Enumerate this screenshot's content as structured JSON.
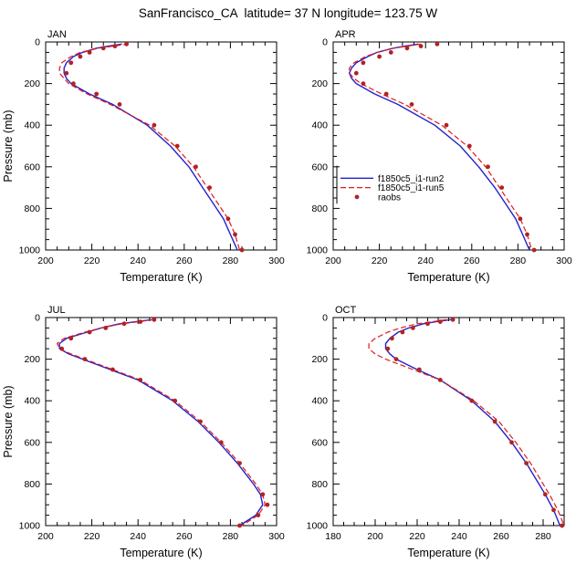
{
  "title": "SanFrancisco_CA  latitude= 37 N longitude= 123.75 W",
  "chart_data": {
    "type": "line",
    "xlabel": "Temperature (K)",
    "ylabel": "Pressure (mb)",
    "ylim": [
      0,
      1000
    ],
    "yticks": [
      0,
      200,
      400,
      600,
      800,
      1000
    ],
    "y_minor_step": 50,
    "x_minor_step": 5,
    "grid": false,
    "colors": {
      "run2": "#2222cc",
      "run5": "#e01a1a",
      "raobs": "#b22222"
    },
    "legend": {
      "panel": "APR",
      "position": "inside-left-lower",
      "items": [
        {
          "key": "run2",
          "label": "f1850c5_i1-run2",
          "type": "line",
          "style": "solid"
        },
        {
          "key": "run5",
          "label": "f1850c5_i1-run5",
          "type": "line",
          "style": "dashed"
        },
        {
          "key": "raobs",
          "label": "raobs",
          "type": "dot"
        }
      ]
    },
    "panels": [
      {
        "month": "JAN",
        "xlim": [
          200,
          300
        ],
        "xticks": [
          200,
          220,
          240,
          260,
          280,
          300
        ],
        "show_ylabel": true,
        "series": [
          {
            "key": "run2",
            "name": "f1850c5_i1-run2",
            "style": "solid",
            "pressure": [
              10,
              20,
              30,
              50,
              70,
              100,
              125,
              150,
              175,
              200,
              250,
              300,
              400,
              500,
              600,
              700,
              800,
              850,
              925,
              1000
            ],
            "temp": [
              233,
              227,
              222,
              216,
              212,
              209,
              208,
              208,
              209,
              211,
              219,
              229,
              244,
              254,
              262,
              268,
              274,
              277,
              280,
              283
            ]
          },
          {
            "key": "run5",
            "name": "f1850c5_i1-run5",
            "style": "dashed",
            "pressure": [
              10,
              20,
              30,
              50,
              70,
              100,
              125,
              150,
              175,
              200,
              250,
              300,
              400,
              500,
              600,
              700,
              800,
              850,
              925,
              1000
            ],
            "temp": [
              236,
              229,
              223,
              215,
              211,
              207,
              206,
              206,
              208,
              210,
              218,
              228,
              245,
              256,
              264,
              270,
              276,
              279,
              282,
              284
            ]
          }
        ],
        "dots": {
          "key": "raobs",
          "name": "raobs",
          "pressure": [
            10,
            20,
            30,
            50,
            70,
            100,
            150,
            200,
            250,
            300,
            400,
            500,
            600,
            700,
            850,
            925,
            1000
          ],
          "temp": [
            235,
            230,
            225,
            219,
            215,
            211,
            209,
            212,
            222,
            232,
            247,
            257,
            265,
            271,
            279,
            282,
            285
          ]
        }
      },
      {
        "month": "APR",
        "xlim": [
          200,
          300
        ],
        "xticks": [
          200,
          220,
          240,
          260,
          280,
          300
        ],
        "show_ylabel": false,
        "series": [
          {
            "key": "run2",
            "name": "f1850c5_i1-run2",
            "style": "solid",
            "pressure": [
              10,
              20,
              30,
              50,
              70,
              100,
              125,
              150,
              175,
              200,
              250,
              300,
              400,
              500,
              600,
              700,
              800,
              850,
              925,
              1000
            ],
            "temp": [
              237,
              231,
              226,
              219,
              215,
              210,
              208,
              207,
              208,
              210,
              218,
              228,
              244,
              255,
              263,
              270,
              276,
              279,
              282,
              285
            ]
          },
          {
            "key": "run5",
            "name": "f1850c5_i1-run5",
            "style": "dashed",
            "pressure": [
              10,
              20,
              30,
              50,
              70,
              100,
              125,
              150,
              175,
              200,
              250,
              300,
              400,
              500,
              600,
              700,
              800,
              850,
              925,
              1000
            ],
            "temp": [
              238,
              232,
              226,
              219,
              214,
              209,
              207,
              207,
              209,
              212,
              221,
              231,
              247,
              258,
              266,
              272,
              278,
              281,
              284,
              286
            ]
          }
        ],
        "dots": {
          "key": "raobs",
          "name": "raobs",
          "pressure": [
            10,
            20,
            30,
            50,
            70,
            100,
            150,
            200,
            250,
            300,
            400,
            500,
            600,
            700,
            850,
            925,
            1000
          ],
          "temp": [
            245,
            238,
            232,
            225,
            220,
            213,
            210,
            213,
            223,
            234,
            249,
            259,
            267,
            273,
            281,
            284,
            287
          ]
        }
      },
      {
        "month": "JUL",
        "xlim": [
          200,
          300
        ],
        "xticks": [
          200,
          220,
          240,
          260,
          280,
          300
        ],
        "show_ylabel": true,
        "series": [
          {
            "key": "run2",
            "name": "f1850c5_i1-run2",
            "style": "solid",
            "pressure": [
              10,
              20,
              30,
              50,
              70,
              100,
              125,
              150,
              175,
              200,
              250,
              300,
              400,
              500,
              600,
              700,
              800,
              850,
              900,
              950,
              1000
            ],
            "temp": [
              246,
              239,
              232,
              224,
              218,
              209,
              206,
              206,
              210,
              216,
              228,
              240,
              255,
              266,
              275,
              283,
              290,
              293,
              294,
              291,
              284
            ]
          },
          {
            "key": "run5",
            "name": "f1850c5_i1-run5",
            "style": "dashed",
            "pressure": [
              10,
              20,
              30,
              50,
              70,
              100,
              125,
              150,
              175,
              200,
              250,
              300,
              400,
              500,
              600,
              700,
              800,
              850,
              900,
              950,
              1000
            ],
            "temp": [
              247,
              240,
              233,
              224,
              217,
              208,
              205,
              206,
              211,
              217,
              229,
              241,
              256,
              267,
              276,
              284,
              291,
              294,
              295,
              292,
              285
            ]
          }
        ],
        "dots": {
          "key": "raobs",
          "name": "raobs",
          "pressure": [
            10,
            20,
            30,
            50,
            70,
            100,
            150,
            200,
            250,
            300,
            400,
            500,
            600,
            700,
            850,
            900,
            950,
            1000
          ],
          "temp": [
            247,
            241,
            234,
            226,
            219,
            211,
            207,
            217,
            229,
            241,
            256,
            267,
            276,
            284,
            294,
            296,
            292,
            284
          ]
        }
      },
      {
        "month": "OCT",
        "xlim": [
          180,
          290
        ],
        "xticks": [
          180,
          200,
          220,
          240,
          260,
          280
        ],
        "show_ylabel": false,
        "series": [
          {
            "key": "run2",
            "name": "f1850c5_i1-run2",
            "style": "solid",
            "pressure": [
              10,
              20,
              30,
              50,
              70,
              100,
              125,
              150,
              175,
              200,
              250,
              300,
              400,
              500,
              600,
              700,
              800,
              850,
              925,
              1000
            ],
            "temp": [
              236,
              229,
              223,
              216,
              211,
              207,
              205,
              205,
              207,
              210,
              220,
              231,
              246,
              257,
              265,
              272,
              278,
              281,
              285,
              288
            ]
          },
          {
            "key": "run5",
            "name": "f1850c5_i1-run5",
            "style": "dashed",
            "pressure": [
              10,
              20,
              30,
              50,
              70,
              100,
              125,
              150,
              175,
              200,
              250,
              300,
              400,
              500,
              600,
              700,
              800,
              850,
              925,
              1000
            ],
            "temp": [
              234,
              227,
              220,
              212,
              206,
              200,
              197,
              197,
              200,
              205,
              218,
              231,
              247,
              259,
              267,
              274,
              280,
              283,
              287,
              290
            ]
          }
        ],
        "dots": {
          "key": "raobs",
          "name": "raobs",
          "pressure": [
            10,
            20,
            30,
            50,
            70,
            100,
            150,
            200,
            250,
            300,
            400,
            500,
            600,
            700,
            850,
            925,
            1000
          ],
          "temp": [
            237,
            231,
            225,
            218,
            213,
            208,
            206,
            210,
            221,
            231,
            246,
            257,
            265,
            272,
            281,
            285,
            289
          ]
        }
      }
    ]
  }
}
